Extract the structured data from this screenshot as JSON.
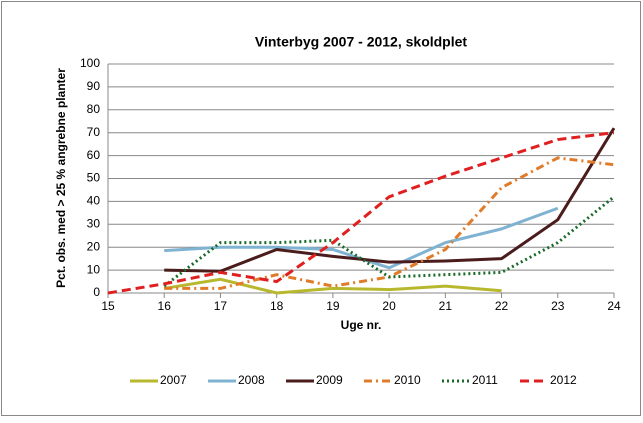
{
  "chart_data": {
    "type": "line",
    "title": "Vinterbyg 2007 - 2012, skoldplet",
    "x_label": "Uge nr.",
    "y_label": "Pct. obs. med > 25 % angrebne planter",
    "x": [
      15,
      16,
      17,
      18,
      19,
      20,
      21,
      22,
      23,
      24
    ],
    "xlim": [
      15,
      24
    ],
    "xticks": [
      15,
      16,
      17,
      18,
      19,
      20,
      21,
      22,
      23,
      24
    ],
    "ylim": [
      0,
      100
    ],
    "yticks": [
      0,
      10,
      20,
      30,
      40,
      50,
      60,
      70,
      80,
      90,
      100
    ],
    "grid": true,
    "legend": "bottom",
    "series": [
      {
        "name": "2007",
        "color": "#b8b82e",
        "style": "solid",
        "values": [
          null,
          2,
          6,
          0,
          2,
          1.5,
          3,
          1,
          null,
          null
        ]
      },
      {
        "name": "2008",
        "color": "#7fb3d1",
        "style": "solid",
        "values": [
          null,
          18.5,
          20,
          20,
          19,
          11,
          22,
          28,
          37,
          null
        ]
      },
      {
        "name": "2009",
        "color": "#4a1c1c",
        "style": "solid",
        "values": [
          null,
          10,
          9.5,
          19,
          16,
          13.5,
          14,
          15,
          32,
          72
        ]
      },
      {
        "name": "2010",
        "color": "#e07b2a",
        "style": "dashdot",
        "values": [
          null,
          2,
          2,
          8,
          3,
          7,
          19,
          46,
          59,
          56
        ]
      },
      {
        "name": "2011",
        "color": "#1a6b2a",
        "style": "dotted",
        "values": [
          null,
          3,
          22,
          22,
          23,
          7,
          8,
          9,
          22,
          42
        ]
      },
      {
        "name": "2012",
        "color": "#e02020",
        "style": "dashed",
        "values": [
          0,
          4,
          9,
          5,
          22,
          42,
          51,
          59,
          67,
          70
        ]
      }
    ]
  }
}
